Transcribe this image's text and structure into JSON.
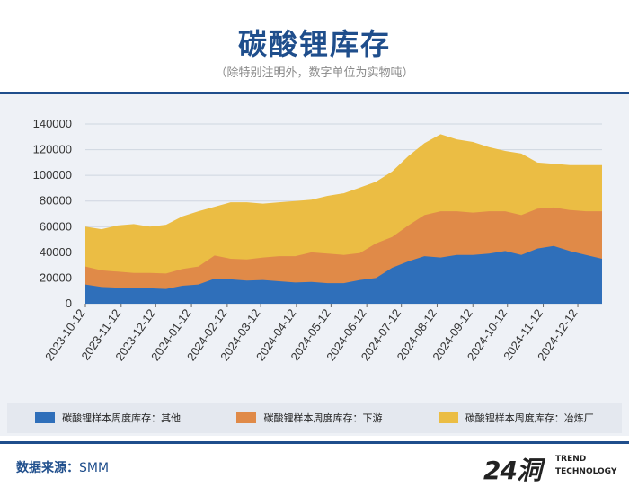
{
  "header": {
    "title": "碳酸锂库存",
    "subtitle": "（除特别注明外，数字单位为实物吨）"
  },
  "footer": {
    "source_label": "数据来源：",
    "source_value": "SMM"
  },
  "logo": {
    "mark": "24洞",
    "line1": "TREND",
    "line2": "TECHNOLOGY"
  },
  "colors": {
    "others": "#2f6fba",
    "downstream": "#e08a48",
    "smelter": "#ebbd44",
    "accent": "#1f4e8c"
  },
  "chart_data": {
    "type": "area",
    "stacked": true,
    "title": "碳酸锂库存",
    "xlabel": "",
    "ylabel": "",
    "ylim": [
      0,
      140000
    ],
    "yticks": [
      0,
      20000,
      40000,
      60000,
      80000,
      100000,
      120000,
      140000
    ],
    "xticks": [
      "2023-10-12",
      "2023-11-12",
      "2023-12-12",
      "2024-01-12",
      "2024-02-12",
      "2024-03-12",
      "2024-04-12",
      "2024-05-12",
      "2024-06-12",
      "2024-07-12",
      "2024-08-12",
      "2024-09-12",
      "2024-10-12",
      "2024-11-12",
      "2024-12-12"
    ],
    "x": [
      "2023-10-12",
      "2023-10-26",
      "2023-11-09",
      "2023-11-23",
      "2023-12-07",
      "2023-12-21",
      "2024-01-04",
      "2024-01-18",
      "2024-02-01",
      "2024-02-15",
      "2024-02-29",
      "2024-03-14",
      "2024-03-28",
      "2024-04-11",
      "2024-04-25",
      "2024-05-09",
      "2024-05-23",
      "2024-06-06",
      "2024-06-20",
      "2024-07-04",
      "2024-07-18",
      "2024-08-01",
      "2024-08-15",
      "2024-08-29",
      "2024-09-12",
      "2024-09-26",
      "2024-10-10",
      "2024-10-24",
      "2024-11-07",
      "2024-11-21",
      "2024-12-05",
      "2024-12-19",
      "2025-01-02"
    ],
    "series": [
      {
        "name": "碳酸锂样本周度库存：其他",
        "values": [
          15000,
          13000,
          12500,
          12000,
          12000,
          11500,
          14000,
          15000,
          19500,
          19000,
          18000,
          18500,
          17500,
          16500,
          17000,
          16000,
          16000,
          18500,
          20000,
          28000,
          33000,
          37000,
          36000,
          38000,
          38000,
          39000,
          41000,
          38000,
          43000,
          45000,
          41000,
          38000,
          35000
        ]
      },
      {
        "name": "碳酸锂样本周度库存：下游",
        "values": [
          14000,
          13000,
          12500,
          12000,
          12000,
          12000,
          13000,
          14000,
          18000,
          16000,
          16500,
          17500,
          19500,
          20500,
          23000,
          23000,
          22000,
          21000,
          27000,
          24000,
          28000,
          32000,
          36000,
          34000,
          33000,
          33000,
          31000,
          31000,
          31000,
          30000,
          32000,
          34000,
          37000
        ]
      },
      {
        "name": "碳酸锂样本周度库存：冶炼厂",
        "values": [
          31000,
          32000,
          36000,
          38000,
          36000,
          38000,
          41000,
          43000,
          38000,
          44000,
          44500,
          42000,
          42000,
          43000,
          41000,
          45000,
          48000,
          51000,
          48000,
          51000,
          54000,
          56000,
          60000,
          56000,
          55000,
          50000,
          47000,
          48000,
          36000,
          34000,
          35000,
          36000,
          36000
        ]
      }
    ],
    "legend_position": "bottom"
  }
}
